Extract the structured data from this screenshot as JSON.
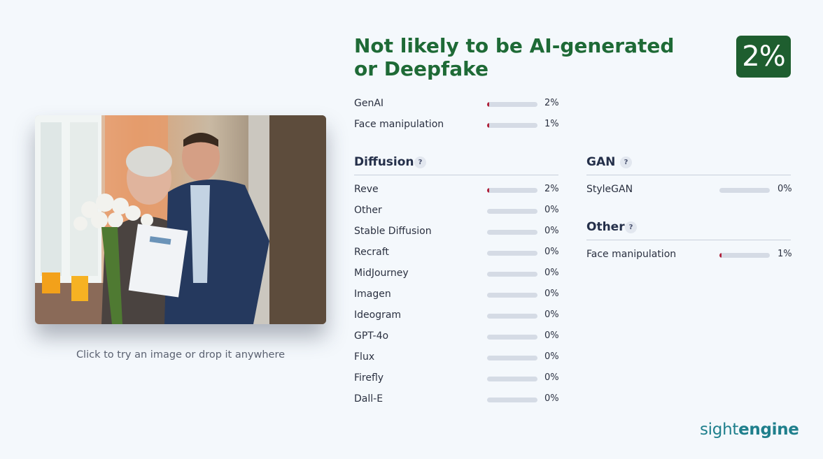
{
  "upload": {
    "hint": "Click to try an image or drop it anywhere"
  },
  "result": {
    "verdict": "Not likely to be AI-generated or Deepfake",
    "score": "2%",
    "score_color": "#1e5e2f"
  },
  "summary": [
    {
      "label": "GenAI",
      "pct": "2%",
      "value": 2
    },
    {
      "label": "Face manipulation",
      "pct": "1%",
      "value": 1
    }
  ],
  "diffusion": {
    "title": "Diffusion",
    "help": "?",
    "items": [
      {
        "label": "Reve",
        "pct": "2%",
        "value": 2
      },
      {
        "label": "Other",
        "pct": "0%",
        "value": 0
      },
      {
        "label": "Stable Diffusion",
        "pct": "0%",
        "value": 0
      },
      {
        "label": "Recraft",
        "pct": "0%",
        "value": 0
      },
      {
        "label": "MidJourney",
        "pct": "0%",
        "value": 0
      },
      {
        "label": "Imagen",
        "pct": "0%",
        "value": 0
      },
      {
        "label": "Ideogram",
        "pct": "0%",
        "value": 0
      },
      {
        "label": "GPT-4o",
        "pct": "0%",
        "value": 0
      },
      {
        "label": "Flux",
        "pct": "0%",
        "value": 0
      },
      {
        "label": "Firefly",
        "pct": "0%",
        "value": 0
      },
      {
        "label": "Dall-E",
        "pct": "0%",
        "value": 0
      }
    ]
  },
  "gan": {
    "title": "GAN",
    "help": "?",
    "items": [
      {
        "label": "StyleGAN",
        "pct": "0%",
        "value": 0
      }
    ]
  },
  "other": {
    "title": "Other",
    "help": "?",
    "items": [
      {
        "label": "Face manipulation",
        "pct": "1%",
        "value": 1
      }
    ]
  },
  "brand": {
    "light": "sight",
    "bold": "engine"
  }
}
